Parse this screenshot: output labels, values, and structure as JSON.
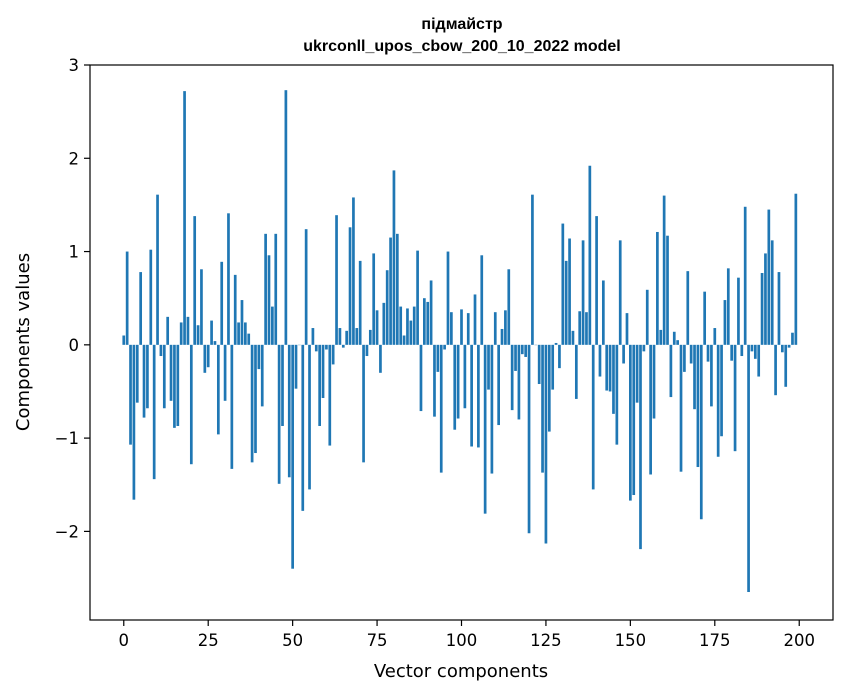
{
  "chart_data": {
    "type": "bar",
    "title": "підмайстр",
    "subtitle": "ukrconll_upos_cbow_200_10_2022 model",
    "xlabel": "Vector components",
    "ylabel": "Components values",
    "xlim": [
      -10,
      210
    ],
    "ylim": [
      -2.95,
      3
    ],
    "xticks": [
      0,
      25,
      50,
      75,
      100,
      125,
      150,
      175,
      200
    ],
    "yticks": [
      -2,
      -1,
      0,
      1,
      2,
      3
    ],
    "ytick_labels": [
      "−2",
      "−1",
      "0",
      "1",
      "2",
      "3"
    ],
    "grid": false,
    "bar_color": "#1f77b4",
    "x": [
      0,
      1,
      2,
      3,
      4,
      5,
      6,
      7,
      8,
      9,
      10,
      11,
      12,
      13,
      14,
      15,
      16,
      17,
      18,
      19,
      20,
      21,
      22,
      23,
      24,
      25,
      26,
      27,
      28,
      29,
      30,
      31,
      32,
      33,
      34,
      35,
      36,
      37,
      38,
      39,
      40,
      41,
      42,
      43,
      44,
      45,
      46,
      47,
      48,
      49,
      50,
      51,
      52,
      53,
      54,
      55,
      56,
      57,
      58,
      59,
      60,
      61,
      62,
      63,
      64,
      65,
      66,
      67,
      68,
      69,
      70,
      71,
      72,
      73,
      74,
      75,
      76,
      77,
      78,
      79,
      80,
      81,
      82,
      83,
      84,
      85,
      86,
      87,
      88,
      89,
      90,
      91,
      92,
      93,
      94,
      95,
      96,
      97,
      98,
      99,
      100,
      101,
      102,
      103,
      104,
      105,
      106,
      107,
      108,
      109,
      110,
      111,
      112,
      113,
      114,
      115,
      116,
      117,
      118,
      119,
      120,
      121,
      122,
      123,
      124,
      125,
      126,
      127,
      128,
      129,
      130,
      131,
      132,
      133,
      134,
      135,
      136,
      137,
      138,
      139,
      140,
      141,
      142,
      143,
      144,
      145,
      146,
      147,
      148,
      149,
      150,
      151,
      152,
      153,
      154,
      155,
      156,
      157,
      158,
      159,
      160,
      161,
      162,
      163,
      164,
      165,
      166,
      167,
      168,
      169,
      170,
      171,
      172,
      173,
      174,
      175,
      176,
      177,
      178,
      179,
      180,
      181,
      182,
      183,
      184,
      185,
      186,
      187,
      188,
      189,
      190,
      191,
      192,
      193,
      194,
      195,
      196,
      197,
      198,
      199
    ],
    "values": [
      0.1,
      1.0,
      -1.07,
      -1.66,
      -0.62,
      0.78,
      -0.78,
      -0.68,
      1.02,
      -1.44,
      1.61,
      -0.12,
      -0.68,
      0.3,
      -0.6,
      -0.89,
      -0.87,
      0.24,
      2.72,
      0.3,
      -1.28,
      1.38,
      0.21,
      0.81,
      -0.3,
      -0.24,
      0.26,
      0.04,
      -0.96,
      0.89,
      -0.6,
      1.41,
      -1.33,
      0.75,
      0.24,
      0.48,
      0.24,
      0.12,
      -1.26,
      -1.16,
      -0.26,
      -0.66,
      1.19,
      0.96,
      0.41,
      1.19,
      -1.49,
      -0.87,
      2.73,
      -1.42,
      -2.4,
      -0.47,
      0.0,
      -1.78,
      1.24,
      -1.55,
      0.18,
      -0.07,
      -0.87,
      -0.57,
      -0.05,
      -1.08,
      -0.21,
      1.39,
      0.18,
      -0.03,
      0.15,
      1.26,
      1.58,
      0.18,
      0.9,
      -1.26,
      -0.12,
      0.16,
      0.98,
      0.37,
      -0.3,
      0.45,
      0.8,
      1.15,
      1.87,
      1.19,
      0.41,
      0.1,
      0.39,
      0.26,
      0.41,
      1.01,
      -0.71,
      0.5,
      0.46,
      0.69,
      -0.77,
      -0.29,
      -1.37,
      -0.05,
      1.0,
      0.35,
      -0.91,
      -0.79,
      0.38,
      -0.68,
      0.34,
      -1.09,
      0.54,
      -1.1,
      0.96,
      -1.81,
      -0.48,
      -1.38,
      0.35,
      -0.86,
      0.17,
      0.37,
      0.81,
      -0.7,
      -0.28,
      -0.8,
      -0.1,
      -0.13,
      -2.02,
      1.61,
      0.0,
      -0.42,
      -1.37,
      -2.13,
      -0.93,
      -0.48,
      0.02,
      -0.25,
      1.3,
      0.9,
      1.14,
      0.15,
      -0.58,
      0.36,
      1.12,
      0.35,
      1.92,
      -1.55,
      1.38,
      -0.34,
      0.69,
      -0.49,
      -0.5,
      -0.74,
      -1.07,
      1.12,
      -0.2,
      0.34,
      -1.67,
      -1.61,
      -0.62,
      -2.19,
      -0.07,
      0.59,
      -1.39,
      -0.79,
      1.21,
      0.16,
      1.6,
      1.17,
      -0.56,
      0.14,
      0.05,
      -1.36,
      -0.29,
      0.79,
      -0.2,
      -0.69,
      -1.31,
      -1.87,
      0.57,
      -0.18,
      -0.66,
      0.18,
      -1.2,
      -0.98,
      0.48,
      0.82,
      -0.17,
      -1.14,
      0.72,
      -0.12,
      1.48,
      -2.65,
      -0.07,
      -0.15,
      -0.34,
      0.77,
      0.98,
      1.45,
      1.12,
      -0.54,
      0.78,
      -0.08,
      -0.45,
      -0.03,
      0.13,
      1.62
    ]
  }
}
